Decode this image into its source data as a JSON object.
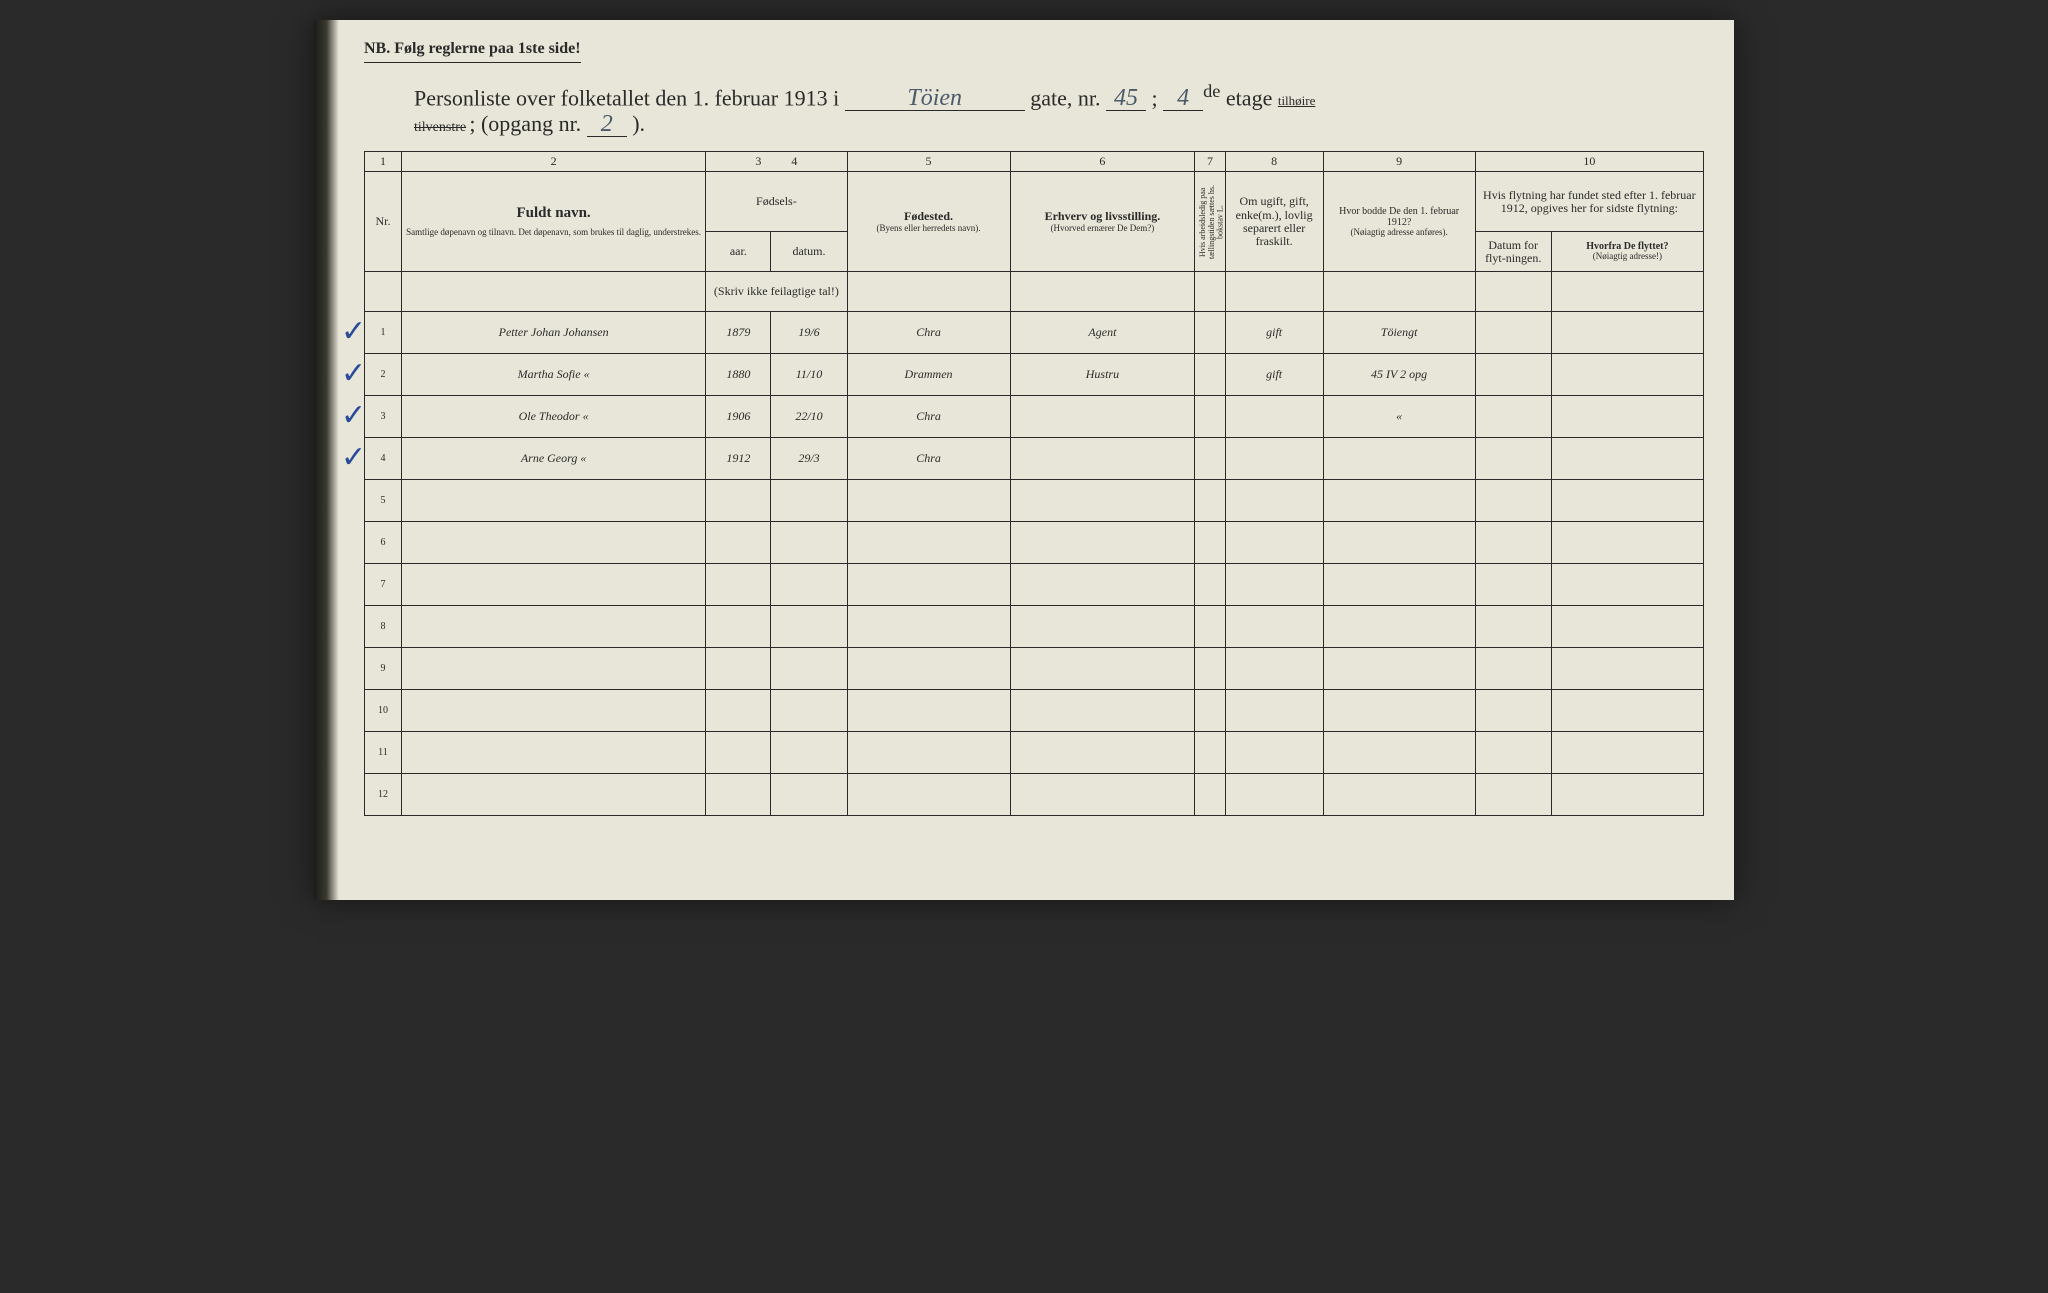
{
  "nb_line": "NB.  Følg reglerne paa 1ste side!",
  "title": {
    "prefix": "Personliste over folketallet den 1. februar 1913 i",
    "street_name": "Töien",
    "gate_label": "gate, nr.",
    "gate_nr": "45",
    "etage_nr": "4",
    "etage_suffix": "de",
    "etage_label": "etage",
    "side_kept": "tilhøire",
    "side_struck": "tilvenstre",
    "opgang_label": "; (opgang nr.",
    "opgang_nr": "2",
    "closing": ")."
  },
  "col_numbers": [
    "1",
    "2",
    "3",
    "4",
    "5",
    "6",
    "7",
    "8",
    "9",
    "10"
  ],
  "headers": {
    "nr": "Nr.",
    "name_title": "Fuldt navn.",
    "name_note": "Samtlige døpenavn og tilnavn. Det døpenavn, som brukes til daglig, understrekes.",
    "fodsels": "Fødsels-",
    "aar": "aar.",
    "datum": "datum.",
    "aar_note": "(Skriv ikke feilagtige tal!)",
    "fodested": "Fødested.",
    "fodested_note": "(Byens eller herredets navn).",
    "erhverv": "Erhverv og livsstilling.",
    "erhverv_note": "(Hvorved ernærer De Dem?)",
    "footnote": "Hvis arbeidsledig paa tællingstiden sættes hs. bokstav L.",
    "civil": "Om ugift, gift, enke(m.), lovlig separert eller fraskilt.",
    "prev_addr_title": "Hvor bodde De den 1. februar 1912?",
    "prev_addr_note": "(Nøiagtig adresse anføres).",
    "move_title": "Hvis flytning har fundet sted efter 1. februar 1912, opgives her for sidste flytning:",
    "move_date": "Datum for flyt-ningen.",
    "move_from_title": "Hvorfra De flyttet?",
    "move_from_note": "(Nøiagtig adresse!)"
  },
  "rows": [
    {
      "nr": "1",
      "check": true,
      "name": "Petter Johan Johansen",
      "year": "1879",
      "date": "19/6",
      "birthplace": "Chra",
      "occupation": "Agent",
      "fn": "",
      "civil": "gift",
      "prev": "Töiengt",
      "mdate": "",
      "mfrom": ""
    },
    {
      "nr": "2",
      "check": true,
      "name": "Martha Sofie   «",
      "year": "1880",
      "date": "11/10",
      "birthplace": "Drammen",
      "occupation": "Hustru",
      "fn": "",
      "civil": "gift",
      "prev": "45 IV 2 opg",
      "mdate": "",
      "mfrom": ""
    },
    {
      "nr": "3",
      "check": true,
      "name": "Ole Theodor   «",
      "year": "1906",
      "date": "22/10",
      "birthplace": "Chra",
      "occupation": "",
      "fn": "",
      "civil": "",
      "prev": "«",
      "mdate": "",
      "mfrom": ""
    },
    {
      "nr": "4",
      "check": true,
      "name": "Arne Georg   «",
      "year": "1912",
      "date": "29/3",
      "birthplace": "Chra",
      "occupation": "",
      "fn": "",
      "civil": "",
      "prev": "",
      "mdate": "",
      "mfrom": ""
    },
    {
      "nr": "5",
      "check": false
    },
    {
      "nr": "6",
      "check": false
    },
    {
      "nr": "7",
      "check": false
    },
    {
      "nr": "8",
      "check": false
    },
    {
      "nr": "9",
      "check": false
    },
    {
      "nr": "10",
      "check": false
    },
    {
      "nr": "11",
      "check": false
    },
    {
      "nr": "12",
      "check": false
    }
  ],
  "colors": {
    "paper": "#e8e6d8",
    "ink_print": "#2a2a2a",
    "ink_hand": "#3a4a5a",
    "ink_blue": "#2a4a9a"
  }
}
